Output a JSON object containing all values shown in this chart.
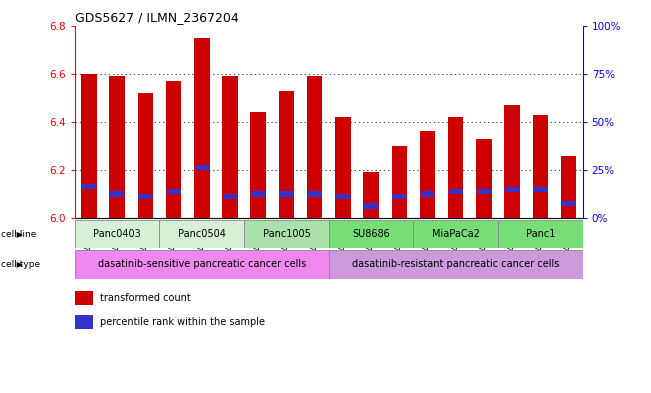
{
  "title": "GDS5627 / ILMN_2367204",
  "samples": [
    "GSM1435684",
    "GSM1435685",
    "GSM1435686",
    "GSM1435687",
    "GSM1435688",
    "GSM1435689",
    "GSM1435690",
    "GSM1435691",
    "GSM1435692",
    "GSM1435693",
    "GSM1435694",
    "GSM1435695",
    "GSM1435696",
    "GSM1435697",
    "GSM1435698",
    "GSM1435699",
    "GSM1435700",
    "GSM1435701"
  ],
  "bar_values": [
    6.6,
    6.59,
    6.52,
    6.57,
    6.75,
    6.59,
    6.44,
    6.53,
    6.59,
    6.42,
    6.19,
    6.3,
    6.36,
    6.42,
    6.33,
    6.47,
    6.43,
    6.26
  ],
  "blue_marker_values": [
    6.13,
    6.1,
    6.09,
    6.11,
    6.21,
    6.09,
    6.1,
    6.1,
    6.1,
    6.09,
    6.05,
    6.09,
    6.1,
    6.11,
    6.11,
    6.12,
    6.12,
    6.06
  ],
  "ylim": [
    6.0,
    6.8
  ],
  "yticks_left": [
    6.0,
    6.2,
    6.4,
    6.6,
    6.8
  ],
  "yticks_right": [
    0,
    25,
    50,
    75,
    100
  ],
  "bar_color": "#cc0000",
  "blue_color": "#3333cc",
  "cell_line_groups": [
    {
      "label": "Panc0403",
      "start": 0,
      "end": 2,
      "color": "#d5f0d5"
    },
    {
      "label": "Panc0504",
      "start": 3,
      "end": 5,
      "color": "#d5f0d5"
    },
    {
      "label": "Panc1005",
      "start": 6,
      "end": 8,
      "color": "#aae0aa"
    },
    {
      "label": "SU8686",
      "start": 9,
      "end": 11,
      "color": "#77dd77"
    },
    {
      "label": "MiaPaCa2",
      "start": 12,
      "end": 14,
      "color": "#77dd77"
    },
    {
      "label": "Panc1",
      "start": 15,
      "end": 17,
      "color": "#77dd77"
    }
  ],
  "cell_type_groups": [
    {
      "label": "dasatinib-sensitive pancreatic cancer cells",
      "start": 0,
      "end": 8,
      "color": "#ee88ee"
    },
    {
      "label": "dasatinib-resistant pancreatic cancer cells",
      "start": 9,
      "end": 17,
      "color": "#cc99dd"
    }
  ],
  "legend_items": [
    {
      "label": "transformed count",
      "color": "#cc0000"
    },
    {
      "label": "percentile rank within the sample",
      "color": "#3333cc"
    }
  ]
}
